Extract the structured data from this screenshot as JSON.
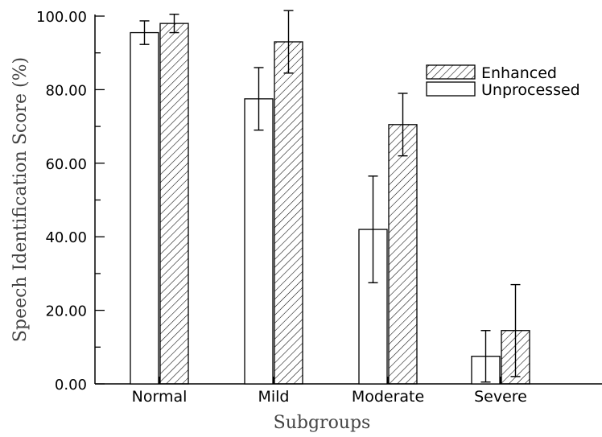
{
  "chart_data": {
    "type": "bar",
    "title": "",
    "xlabel": "Subgroups",
    "ylabel": "Speech Identification Score (%)",
    "ylim": [
      0,
      100
    ],
    "yticks": [
      "0.00",
      "20.00",
      "40.00",
      "60.00",
      "80.00",
      "100.00"
    ],
    "categories": [
      "Normal",
      "Mild",
      "Moderate",
      "Severe"
    ],
    "series": [
      {
        "name": "Unprocessed",
        "values": [
          95.5,
          77.5,
          42.0,
          7.5
        ],
        "error": [
          3.2,
          8.5,
          14.5,
          7.0
        ],
        "fill": "none"
      },
      {
        "name": "Enhanced",
        "values": [
          98.0,
          93.0,
          70.5,
          14.5
        ],
        "error": [
          2.5,
          8.5,
          8.5,
          12.5
        ],
        "fill": "hatch"
      }
    ],
    "legend": "top-right",
    "grid": false,
    "colors": {
      "stroke": "#000000",
      "hatch": "#000000",
      "background": "#ffffff"
    }
  }
}
